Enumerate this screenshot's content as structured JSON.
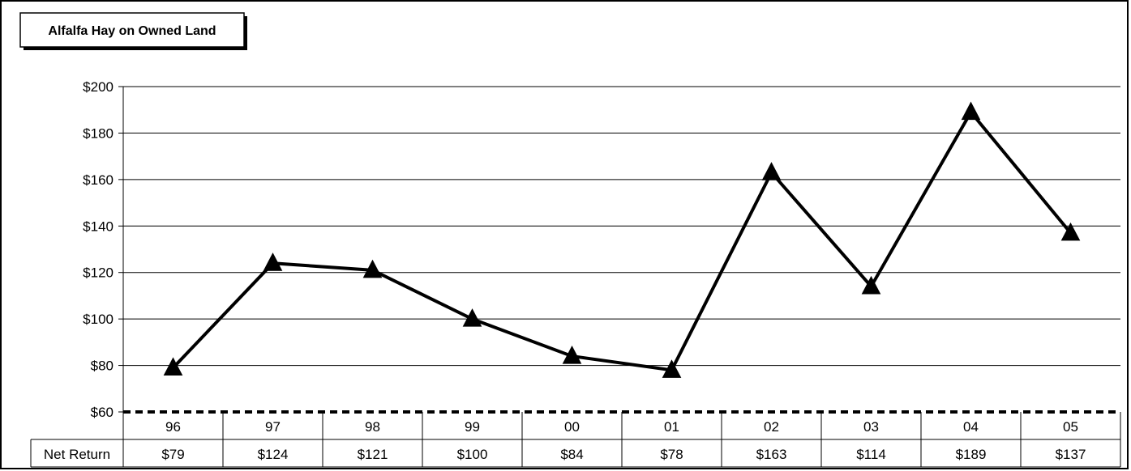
{
  "chart_data": {
    "type": "line",
    "title": "Alfalfa Hay on Owned Land",
    "categories": [
      "96",
      "97",
      "98",
      "99",
      "00",
      "01",
      "02",
      "03",
      "04",
      "05"
    ],
    "series": [
      {
        "name": "Net Return",
        "values": [
          79,
          124,
          121,
          100,
          84,
          78,
          163,
          114,
          189,
          137
        ],
        "marker": "triangle",
        "color": "#000000"
      }
    ],
    "data_table": {
      "row_label": "Net Return",
      "cells": [
        "$79",
        "$124",
        "$121",
        "$100",
        "$84",
        "$78",
        "$163",
        "$114",
        "$189",
        "$137"
      ]
    },
    "y_ticks": [
      "$60",
      "$80",
      "$100",
      "$120",
      "$140",
      "$160",
      "$180",
      "$200"
    ],
    "ylim": [
      60,
      200
    ],
    "ystep": 20,
    "grid": true,
    "legend": "none"
  }
}
